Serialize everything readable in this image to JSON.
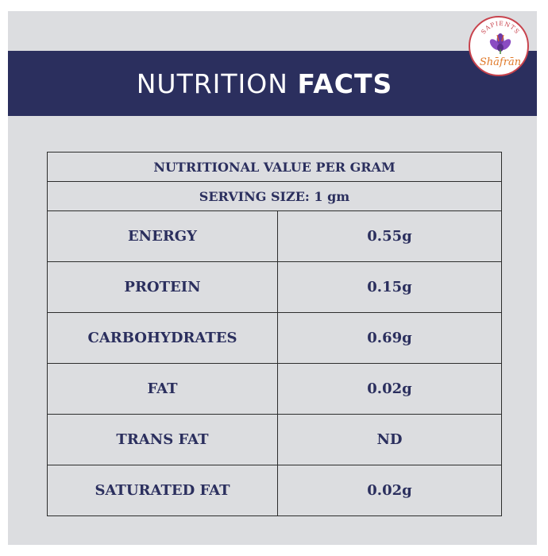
{
  "header": {
    "title_light": "NUTRITION",
    "title_bold": "FACTS"
  },
  "logo": {
    "top_text": "SAPIENTS",
    "brand": "Shāfrān",
    "icon": "saffron-flower-icon",
    "border_color": "#c8434d",
    "flower_color": "#6f3aa7"
  },
  "table": {
    "heading": "NUTRITIONAL VALUE PER GRAM",
    "serving": "SERVING SIZE: 1 gm",
    "rows": [
      {
        "name": "ENERGY",
        "value": "0.55g"
      },
      {
        "name": "PROTEIN",
        "value": "0.15g"
      },
      {
        "name": "CARBOHYDRATES",
        "value": "0.69g"
      },
      {
        "name": "FAT",
        "value": "0.02g"
      },
      {
        "name": "TRANS FAT",
        "value": "ND"
      },
      {
        "name": "SATURATED FAT",
        "value": "0.02g"
      }
    ]
  },
  "colors": {
    "banner": "#2b2f5e",
    "text": "#2b2f5e",
    "panel": "#dcdde0"
  }
}
